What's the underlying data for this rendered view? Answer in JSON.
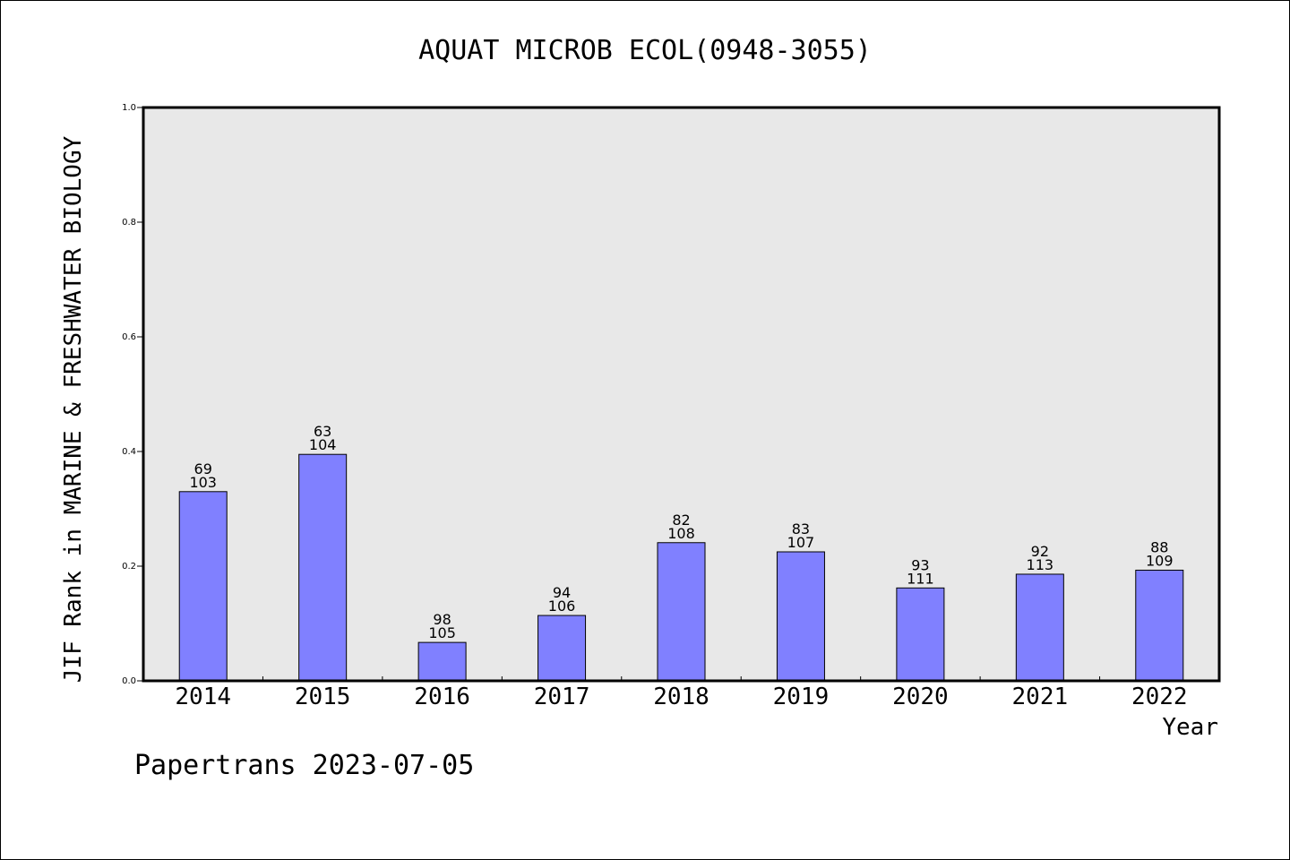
{
  "chart_data": {
    "type": "bar",
    "title": "AQUAT MICROB ECOL(0948-3055)",
    "ylabel": "JIF Rank in MARINE & FRESHWATER BIOLOGY",
    "xlabel": "Year",
    "footer": "Papertrans 2023-07-05",
    "ylim": [
      0,
      1.0
    ],
    "yticks": [
      0.0,
      0.2,
      0.4,
      0.6,
      0.8,
      1.0
    ],
    "ytick_labels": [
      "0.0",
      "0.2",
      "0.4",
      "0.6",
      "0.8",
      "1.0"
    ],
    "grid": false,
    "categories": [
      "2014",
      "2015",
      "2016",
      "2017",
      "2018",
      "2019",
      "2020",
      "2021",
      "2022"
    ],
    "values": [
      0.33,
      0.395,
      0.067,
      0.114,
      0.241,
      0.225,
      0.162,
      0.186,
      0.193
    ],
    "ranks": [
      69,
      63,
      98,
      94,
      82,
      83,
      93,
      92,
      88
    ],
    "totals": [
      103,
      104,
      105,
      106,
      108,
      107,
      111,
      113,
      109
    ],
    "colors": {
      "bar_fill": "#8080ff",
      "bar_stroke": "#000000",
      "plot_background": "#e8e8e8",
      "axis": "#000000"
    }
  }
}
